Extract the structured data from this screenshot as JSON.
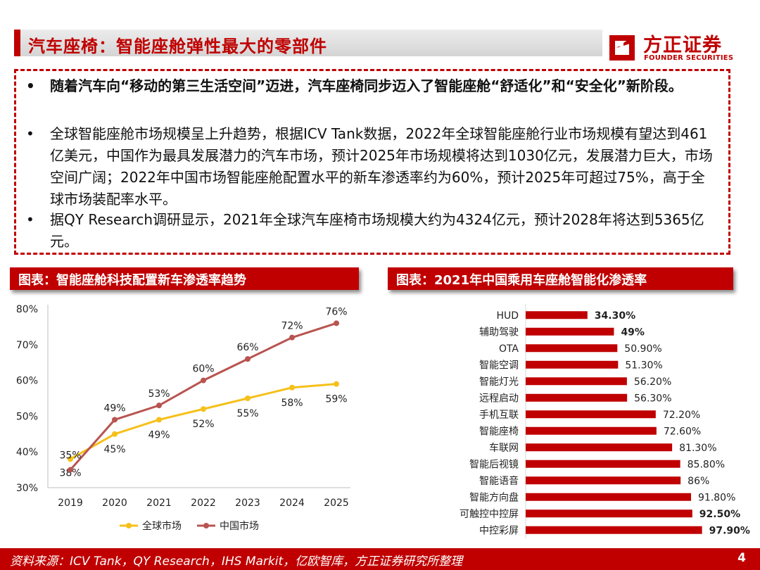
{
  "slide": {
    "title": "汽车座椅：智能座舱弹性最大的零部件",
    "logo_cn": "方正证券",
    "logo_en": "FOUNDER SECURITIES",
    "page_number": "4",
    "source": "资料来源：ICV Tank，QY Research，IHS Markit，亿欧智库，方正证券研究所整理"
  },
  "bullets": [
    {
      "marker": "•",
      "text": "随着汽车向“移动的第三生活空间”迈进，汽车座椅同步迈入了智能座舱“舒适化”和“安全化”新阶段。"
    },
    {
      "marker": "•",
      "text": "全球智能座舱市场规模呈上升趋势，根据ICV Tank数据，2022年全球智能座舱行业市场规模有望达到461亿美元，中国作为最具发展潜力的汽车市场，预计2025年市场规模将达到1030亿元，发展潜力巨大，市场空间广阔；2022年中国市场智能座舱配置水平的新车渗透率约为60%，预计2025年可超过75%，高于全球市场装配率水平。"
    },
    {
      "marker": "•",
      "text": "据QY Research调研显示，2021年全球汽车座椅市场规模大约为4324亿元，预计2028年将达到5365亿元。"
    }
  ],
  "panels": {
    "left_title": "图表：智能座舱科技配置新车渗透率趋势",
    "right_title": "图表：2021年中国乘用车座舱智能化渗透率"
  },
  "chart_data": [
    {
      "type": "line",
      "title": "智能座舱科技配置新车渗透率趋势",
      "x": [
        "2019",
        "2020",
        "2021",
        "2022",
        "2023",
        "2024",
        "2025"
      ],
      "ylim": [
        30,
        80
      ],
      "yticks": [
        "30%",
        "40%",
        "50%",
        "60%",
        "70%",
        "80%"
      ],
      "ytick_values": [
        30,
        40,
        50,
        60,
        70,
        80
      ],
      "legend_position": "bottom",
      "series": [
        {
          "name": "全球市场",
          "color": "#f6c01b",
          "values": [
            38,
            45,
            49,
            52,
            55,
            58,
            59
          ],
          "labels": [
            "38%",
            "45%",
            "49%",
            "52%",
            "55%",
            "58%",
            "59%"
          ],
          "label_position": "below"
        },
        {
          "name": "中国市场",
          "color": "#b85450",
          "values": [
            35,
            49,
            53,
            60,
            66,
            72,
            76
          ],
          "labels": [
            "35%",
            "49%",
            "53%",
            "60%",
            "66%",
            "72%",
            "76%"
          ],
          "label_position": "above"
        }
      ]
    },
    {
      "type": "bar",
      "orientation": "horizontal",
      "title": "2021年中国乘用车座舱智能化渗透率",
      "color": "#c00000",
      "categories": [
        "HUD",
        "辅助驾驶",
        "OTA",
        "智能空调",
        "智能灯光",
        "远程启动",
        "手机互联",
        "智能座椅",
        "车联网",
        "智能后视镜",
        "智能语音",
        "智能方向盘",
        "可触控中控屏",
        "中控彩屏"
      ],
      "values": [
        34.3,
        49,
        50.9,
        51.3,
        56.2,
        56.3,
        72.2,
        72.6,
        81.3,
        85.8,
        86,
        91.8,
        92.5,
        97.9
      ],
      "labels": [
        "34.30%",
        "49%",
        "50.90%",
        "51.30%",
        "56.20%",
        "56.30%",
        "72.20%",
        "72.60%",
        "81.30%",
        "85.80%",
        "86%",
        "91.80%",
        "92.50%",
        "97.90%"
      ],
      "bold_labels": [
        true,
        true,
        false,
        false,
        false,
        false,
        false,
        false,
        false,
        false,
        false,
        false,
        true,
        true
      ],
      "xlim": [
        0,
        100
      ]
    }
  ]
}
